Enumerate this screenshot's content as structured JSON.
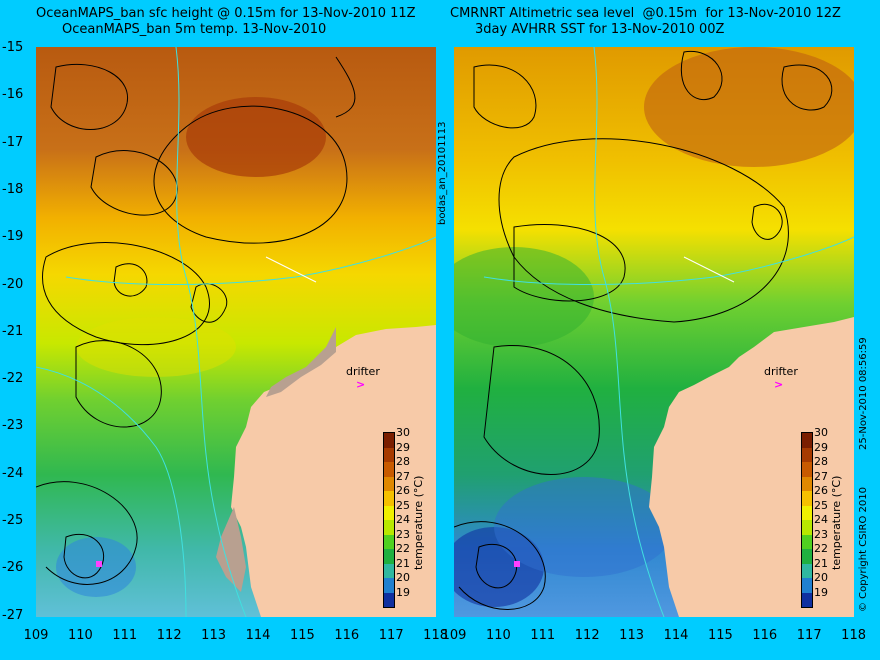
{
  "left_title_line1": "OceanMAPS_ban sfc height @ 0.15m for 13-Nov-2010 11Z",
  "left_title_line2": "OceanMAPS_ban 5m temp. 13-Nov-2010",
  "right_title_line1": "CMRNRT Altimetric sea level  @0.15m  for 13-Nov-2010 12Z",
  "right_title_line2": "3day AVHRR SST for 13-Nov-2010 00Z",
  "y_ticks": [
    "-15",
    "-16",
    "-17",
    "-18",
    "-19",
    "-20",
    "-21",
    "-22",
    "-23",
    "-24",
    "-25",
    "-26",
    "-27"
  ],
  "x_ticks_left": [
    "109",
    "110",
    "111",
    "112",
    "113",
    "114",
    "115",
    "116",
    "117",
    "118"
  ],
  "x_ticks_right": [
    "109",
    "110",
    "111",
    "112",
    "113",
    "114",
    "115",
    "116",
    "117",
    "118"
  ],
  "center_label": "bodas_an_20101113",
  "right_side_label": "25-Nov-2010 08:56:59",
  "copyright": "© Copyright CSIRO 2010",
  "colorbar_title": "temperature (°C)",
  "colorbar_ticks": [
    "30",
    "29",
    "28",
    "27",
    "26",
    "25",
    "24",
    "23",
    "22",
    "21",
    "20",
    "19"
  ],
  "colorbar_colors": [
    "#7a1e00",
    "#a63a00",
    "#c85a00",
    "#e08800",
    "#f5c000",
    "#f0f000",
    "#b8e800",
    "#50d020",
    "#20b040",
    "#30b8a0",
    "#2080d0",
    "#1030a0"
  ],
  "drifter_label": "drifter",
  "map_extent": {
    "lon": [
      109,
      118
    ],
    "lat": [
      -27,
      -15
    ]
  }
}
